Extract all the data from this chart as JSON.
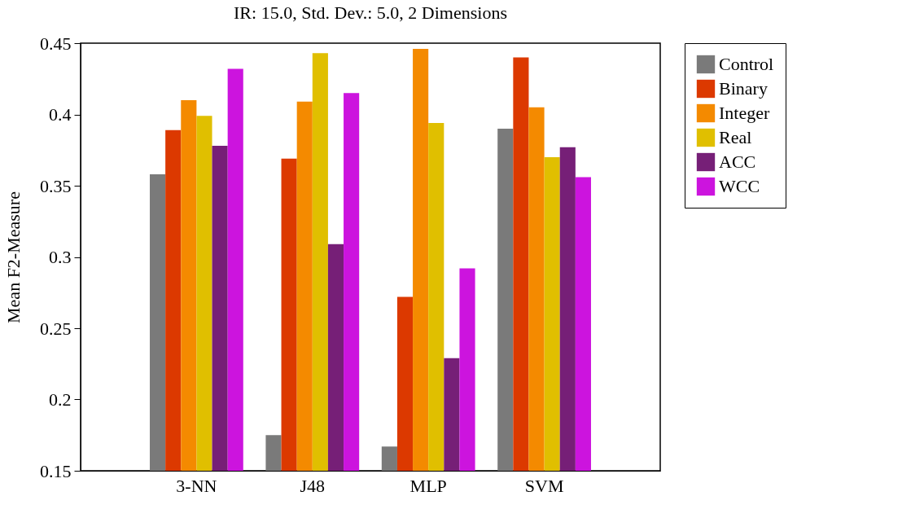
{
  "chart_data": {
    "type": "bar",
    "title": "IR: 15.0, Std. Dev.: 5.0, 2 Dimensions",
    "ylabel": "Mean F2-Measure",
    "categories": [
      "3-NN",
      "J48",
      "MLP",
      "SVM"
    ],
    "series": [
      {
        "name": "Control",
        "color": "#7a7a7a",
        "values": [
          0.358,
          0.175,
          0.167,
          0.39
        ]
      },
      {
        "name": "Binary",
        "color": "#dc3900",
        "values": [
          0.389,
          0.369,
          0.272,
          0.44
        ]
      },
      {
        "name": "Integer",
        "color": "#f48a00",
        "values": [
          0.41,
          0.409,
          0.446,
          0.405
        ]
      },
      {
        "name": "Real",
        "color": "#e0bf00",
        "values": [
          0.399,
          0.443,
          0.394,
          0.37
        ]
      },
      {
        "name": "ACC",
        "color": "#761f77",
        "values": [
          0.378,
          0.309,
          0.229,
          0.377
        ]
      },
      {
        "name": "WCC",
        "color": "#cc14de",
        "values": [
          0.432,
          0.415,
          0.292,
          0.356
        ]
      }
    ],
    "ylim": [
      0.15,
      0.45
    ],
    "yticks": [
      0.15,
      0.2,
      0.25,
      0.3,
      0.35,
      0.4,
      0.45
    ],
    "grid": false,
    "legend": "right"
  }
}
